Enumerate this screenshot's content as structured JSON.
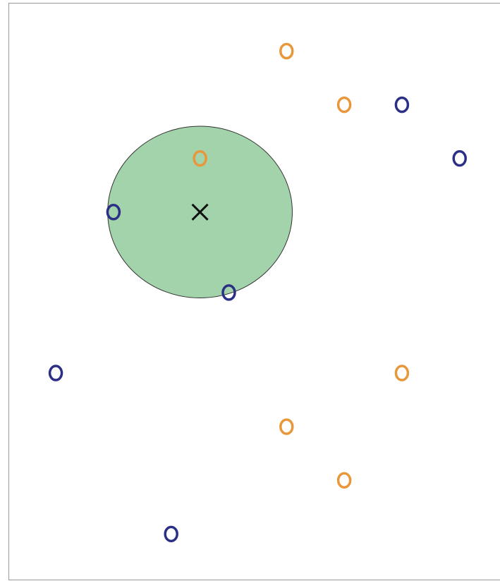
{
  "chart_data": {
    "type": "scatter",
    "xlim": [
      0.18,
      8.7
    ],
    "ylim": [
      0.15,
      10.9
    ],
    "series": [
      {
        "color": "#e8973a",
        "x": [
          5,
          6,
          3.5,
          7,
          5,
          6
        ],
        "values": [
          10,
          9,
          8,
          4,
          3,
          2
        ]
      },
      {
        "color": "#2b2f86",
        "x": [
          7,
          8,
          2,
          4,
          1,
          3
        ],
        "values": [
          9,
          8,
          7,
          5.5,
          4,
          1
        ]
      }
    ],
    "query": {
      "x": 3.5,
      "y": 7,
      "color": "#111111"
    },
    "circle": {
      "x": 3.5,
      "y": 7,
      "radius": 1.6,
      "color": "#a3d3ab"
    }
  }
}
